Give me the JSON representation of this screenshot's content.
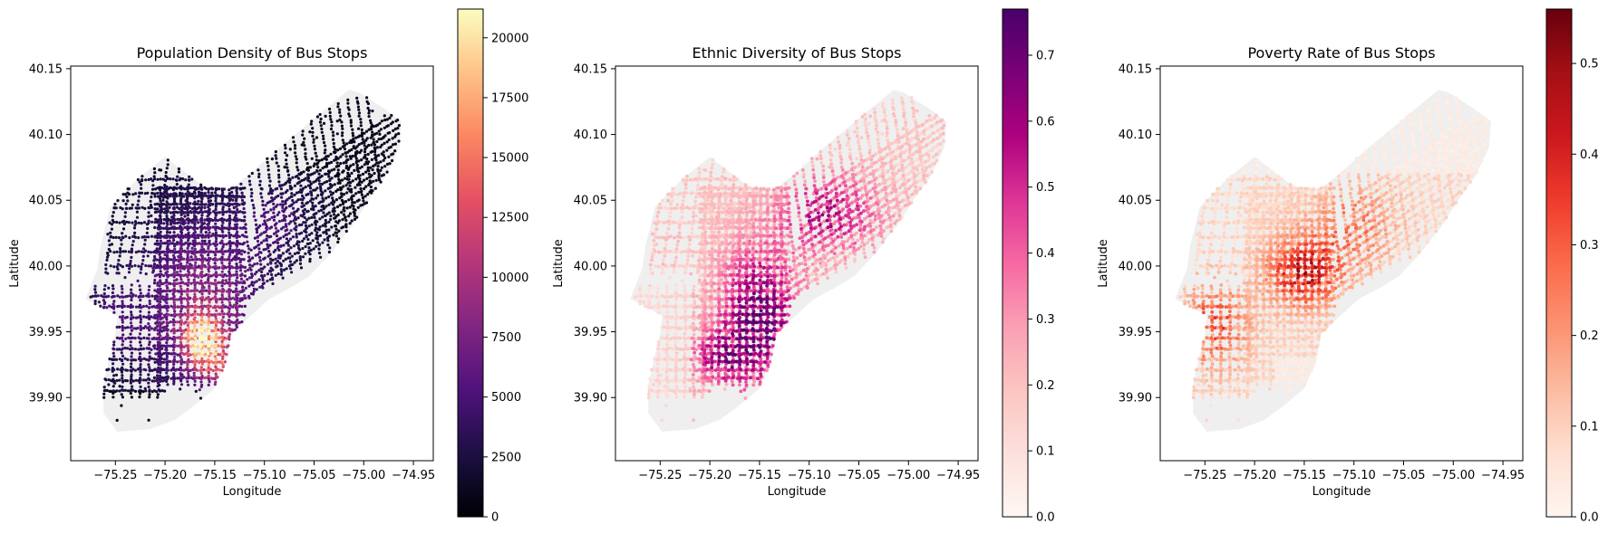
{
  "chart_data": [
    {
      "type": "scatter",
      "title": "Population Density of Bus Stops",
      "xlabel": "Longitude",
      "ylabel": "Latitude",
      "xlim": [
        -75.295,
        -74.93
      ],
      "ylim": [
        39.852,
        40.152
      ],
      "xticks": [
        "-75.25",
        "-75.20",
        "-75.15",
        "-75.10",
        "-75.05",
        "-75.00",
        "-74.95"
      ],
      "yticks": [
        "39.90",
        "39.95",
        "40.00",
        "40.05",
        "40.10",
        "40.15"
      ],
      "colormap": "magma",
      "colorbar": {
        "min": 0,
        "max": 21200,
        "ticks": [
          "0",
          "2500",
          "5000",
          "7500",
          "10000",
          "12500",
          "15000",
          "17500",
          "20000"
        ]
      },
      "grid": false
    },
    {
      "type": "scatter",
      "title": "Ethnic Diversity of Bus Stops",
      "xlabel": "Longitude",
      "ylabel": "Latitude",
      "xlim": [
        -75.295,
        -74.93
      ],
      "ylim": [
        39.852,
        40.152
      ],
      "xticks": [
        "-75.25",
        "-75.20",
        "-75.15",
        "-75.10",
        "-75.05",
        "-75.00",
        "-74.95"
      ],
      "yticks": [
        "39.90",
        "39.95",
        "40.00",
        "40.05",
        "40.10",
        "40.15"
      ],
      "colormap": "RdPu",
      "colorbar": {
        "min": 0.0,
        "max": 0.77,
        "ticks": [
          "0.0",
          "0.1",
          "0.2",
          "0.3",
          "0.4",
          "0.5",
          "0.6",
          "0.7"
        ]
      },
      "grid": false
    },
    {
      "type": "scatter",
      "title": "Poverty Rate of Bus Stops",
      "xlabel": "Longitude",
      "ylabel": "Latitude",
      "xlim": [
        -75.295,
        -74.93
      ],
      "ylim": [
        39.852,
        40.152
      ],
      "xticks": [
        "-75.25",
        "-75.20",
        "-75.15",
        "-75.10",
        "-75.05",
        "-75.00",
        "-74.95"
      ],
      "yticks": [
        "39.90",
        "39.95",
        "40.00",
        "40.05",
        "40.10",
        "40.15"
      ],
      "colormap": "Reds",
      "colorbar": {
        "min": 0.0,
        "max": 0.56,
        "ticks": [
          "0.0",
          "0.1",
          "0.2",
          "0.3",
          "0.4",
          "0.5"
        ]
      },
      "grid": false
    }
  ],
  "colors": {
    "background_map": "#efefef",
    "magma": [
      "#000004",
      "#1c1044",
      "#4f127b",
      "#812581",
      "#b5367a",
      "#e55064",
      "#fb8761",
      "#fec287",
      "#fcfdbf"
    ],
    "RdPu": [
      "#fff7f3",
      "#fde0dd",
      "#fcc5c0",
      "#fa9fb5",
      "#f768a1",
      "#dd3497",
      "#ae017e",
      "#7a0177",
      "#49006a"
    ],
    "Reds": [
      "#fff5f0",
      "#fee0d2",
      "#fcbba1",
      "#fc9272",
      "#fb6a4a",
      "#ef3b2c",
      "#cb181d",
      "#a50f15",
      "#67000d"
    ]
  },
  "city_boundary": [
    [
      -75.28,
      39.975
    ],
    [
      -75.262,
      39.968
    ],
    [
      -75.248,
      39.962
    ],
    [
      -75.25,
      39.948
    ],
    [
      -75.256,
      39.93
    ],
    [
      -75.262,
      39.91
    ],
    [
      -75.262,
      39.888
    ],
    [
      -75.248,
      39.874
    ],
    [
      -75.215,
      39.876
    ],
    [
      -75.19,
      39.883
    ],
    [
      -75.172,
      39.893
    ],
    [
      -75.15,
      39.907
    ],
    [
      -75.138,
      39.928
    ],
    [
      -75.133,
      39.948
    ],
    [
      -75.117,
      39.96
    ],
    [
      -75.095,
      39.975
    ],
    [
      -75.075,
      39.983
    ],
    [
      -75.055,
      39.992
    ],
    [
      -75.035,
      40.008
    ],
    [
      -75.012,
      40.03
    ],
    [
      -74.995,
      40.05
    ],
    [
      -74.978,
      40.068
    ],
    [
      -74.964,
      40.09
    ],
    [
      -74.962,
      40.11
    ],
    [
      -74.98,
      40.12
    ],
    [
      -75.005,
      40.132
    ],
    [
      -75.015,
      40.134
    ],
    [
      -75.05,
      40.112
    ],
    [
      -75.085,
      40.09
    ],
    [
      -75.115,
      40.07
    ],
    [
      -75.135,
      40.058
    ],
    [
      -75.16,
      40.06
    ],
    [
      -75.2,
      40.083
    ],
    [
      -75.228,
      40.066
    ],
    [
      -75.255,
      40.045
    ],
    [
      -75.265,
      40.015
    ],
    [
      -75.268,
      39.998
    ]
  ]
}
